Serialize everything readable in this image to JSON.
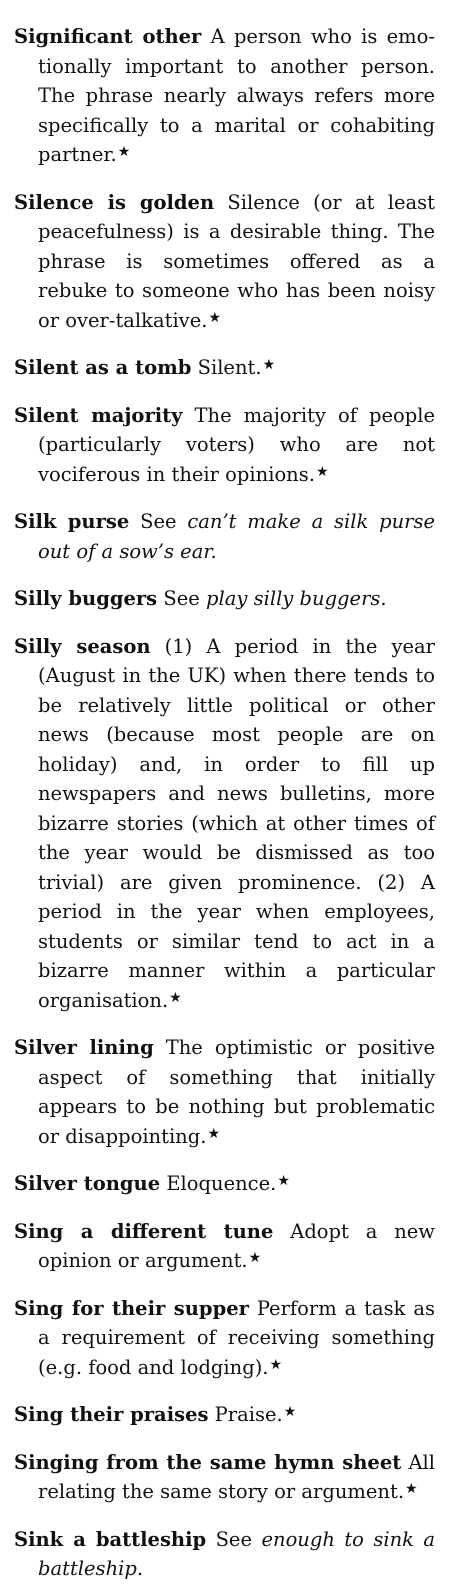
{
  "entries": [
    {
      "term": "Significant other",
      "definition": "A person who is emo­tionally important to another person. The phrase nearly always refers more specifically to a marital or cohabiting partner.",
      "xref": "",
      "tail": "",
      "star": "★"
    },
    {
      "term": "Silence is golden",
      "definition": "Silence (or at least peace­fulness) is a desirable thing. The phrase is sometimes offered as a rebuke to someone who has been noisy or over-talkative.",
      "xref": "",
      "tail": "",
      "star": "★"
    },
    {
      "term": "Silent as a tomb",
      "definition": "Silent.",
      "xref": "",
      "tail": "",
      "star": "★"
    },
    {
      "term": "Silent majority",
      "definition": "The majority of people (particularly voters) who are not vocifer­ous in their opinions.",
      "xref": "",
      "tail": "",
      "star": "★"
    },
    {
      "term": "Silk purse",
      "definition": "See",
      "xref": "can’t make a silk purse out of a sow’s ear",
      "tail": ".",
      "star": ""
    },
    {
      "term": "Silly buggers",
      "definition": "See",
      "xref": "play silly buggers",
      "tail": ".",
      "star": ""
    },
    {
      "term": "Silly season",
      "definition": "(1) A period in the year (August in the UK) when there tends to be relatively little political or other news (because most people are on holiday) and, in order to fill up newspapers and news bulletins, more bizarre stories (which at other times of the year would be dismissed as too trivial) are given prominence. (2) A period in the year when employees, students or similar tend to act in a bizarre manner within a partic­ular organisation.",
      "xref": "",
      "tail": "",
      "star": "★"
    },
    {
      "term": "Silver lining",
      "definition": "The optimistic or positive aspect of something that initially appears to be nothing but problematic or disap­pointing.",
      "xref": "",
      "tail": "",
      "star": "★"
    },
    {
      "term": "Silver tongue",
      "definition": "Eloquence.",
      "xref": "",
      "tail": "",
      "star": "★"
    },
    {
      "term": "Sing a different tune",
      "definition": "Adopt a new opinion or argument.",
      "xref": "",
      "tail": "",
      "star": "★"
    },
    {
      "term": "Sing for their supper",
      "definition": "Perform a task as a requirement of receiving something (e.g. food and lodging).",
      "xref": "",
      "tail": "",
      "star": "★"
    },
    {
      "term": "Sing their praises",
      "definition": "Praise.",
      "xref": "",
      "tail": "",
      "star": "★"
    },
    {
      "term": "Singing from the same hymn sheet",
      "definition": "All relating the same story or argument.",
      "xref": "",
      "tail": "",
      "star": "★"
    },
    {
      "term": "Sink a battleship",
      "definition": "See",
      "xref": "enough to sink a battle­ship",
      "tail": ".",
      "star": ""
    }
  ]
}
